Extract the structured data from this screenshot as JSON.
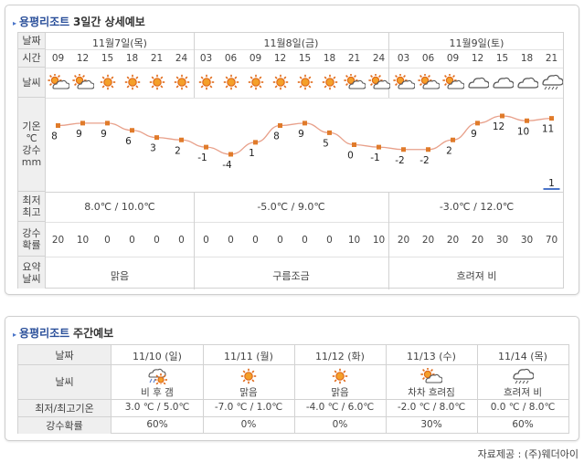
{
  "three_day": {
    "title_arrow": "▸",
    "title": "용평리조트",
    "subtitle": "3일간 상세예보",
    "labels": {
      "date": "날짜",
      "time": "시간",
      "weather": "날씨",
      "temp_line1": "기온",
      "temp_line2": "℃",
      "rain_line1": "강수",
      "rain_line2": "mm",
      "minmax_line1": "최저",
      "minmax_line2": "최고",
      "pop_line1": "강수",
      "pop_line2": "확률",
      "summary_line1": "요약",
      "summary_line2": "날씨"
    },
    "days": [
      {
        "date": "11월7일(목)",
        "minmax": "8.0℃ / 10.0℃",
        "summary": "맑음"
      },
      {
        "date": "11월8일(금)",
        "minmax": "-5.0℃ / 9.0℃",
        "summary": "구름조금"
      },
      {
        "date": "11월9일(토)",
        "minmax": "-3.0℃ / 12.0℃",
        "summary": "흐려져 비"
      }
    ],
    "hours": [
      {
        "time": "09",
        "icon": "sun-cloud-icon",
        "temp": "8",
        "pop": "20"
      },
      {
        "time": "12",
        "icon": "sun-cloud-icon",
        "temp": "9",
        "pop": "10"
      },
      {
        "time": "15",
        "icon": "sun-icon",
        "temp": "9",
        "pop": "0"
      },
      {
        "time": "18",
        "icon": "sun-icon",
        "temp": "6",
        "pop": "0"
      },
      {
        "time": "21",
        "icon": "sun-icon",
        "temp": "3",
        "pop": "0"
      },
      {
        "time": "24",
        "icon": "sun-icon",
        "temp": "2",
        "pop": "0"
      },
      {
        "time": "03",
        "icon": "sun-icon",
        "temp": "-1",
        "pop": "0"
      },
      {
        "time": "06",
        "icon": "sun-icon",
        "temp": "-4",
        "pop": "0"
      },
      {
        "time": "09",
        "icon": "sun-icon",
        "temp": "1",
        "pop": "0"
      },
      {
        "time": "12",
        "icon": "sun-icon",
        "temp": "8",
        "pop": "0"
      },
      {
        "time": "15",
        "icon": "sun-icon",
        "temp": "9",
        "pop": "0"
      },
      {
        "time": "18",
        "icon": "sun-icon",
        "temp": "5",
        "pop": "0"
      },
      {
        "time": "21",
        "icon": "sun-cloud-icon",
        "temp": "0",
        "pop": "10"
      },
      {
        "time": "24",
        "icon": "sun-cloud-icon",
        "temp": "-1",
        "pop": "10"
      },
      {
        "time": "03",
        "icon": "sun-cloud-icon",
        "temp": "-2",
        "pop": "20"
      },
      {
        "time": "06",
        "icon": "sun-cloud-icon",
        "temp": "-2",
        "pop": "20"
      },
      {
        "time": "09",
        "icon": "sun-cloud-icon",
        "temp": "2",
        "pop": "20"
      },
      {
        "time": "12",
        "icon": "cloud-icon",
        "temp": "9",
        "pop": "20"
      },
      {
        "time": "15",
        "icon": "cloud-icon",
        "temp": "12",
        "pop": "30"
      },
      {
        "time": "18",
        "icon": "cloud-icon",
        "temp": "10",
        "pop": "30"
      },
      {
        "time": "21",
        "icon": "cloud-rain-icon",
        "temp": "11",
        "pop": "70"
      }
    ],
    "rain_readout": "1"
  },
  "chart_data": {
    "type": "line",
    "x": [
      "09",
      "12",
      "15",
      "18",
      "21",
      "24",
      "03",
      "06",
      "09",
      "12",
      "15",
      "18",
      "21",
      "24",
      "03",
      "06",
      "09",
      "12",
      "15",
      "18",
      "21"
    ],
    "series": [
      {
        "values": [
          8,
          9,
          9,
          6,
          3,
          2,
          -1,
          -4,
          1,
          8,
          9,
          5,
          0,
          -1,
          -2,
          -2,
          2,
          9,
          12,
          10,
          11
        ]
      }
    ],
    "rain_mm": [
      0,
      0,
      0,
      0,
      0,
      0,
      0,
      0,
      0,
      0,
      0,
      0,
      0,
      0,
      0,
      0,
      0,
      0,
      0,
      0,
      1
    ],
    "line_color": "#e8a08a",
    "marker_color": "#e07b2a",
    "rain_bar_color": "#4a74c9"
  },
  "weekly": {
    "title_arrow": "▸",
    "title": "용평리조트",
    "subtitle": "주간예보",
    "labels": {
      "date": "날짜",
      "weather": "날씨",
      "minmax": "최저/최고기온",
      "pop": "강수확률"
    },
    "days": [
      {
        "date": "11/10 (일)",
        "icon": "sun-rain-icon",
        "desc": "비 후 갬",
        "minmax": "3.0 ℃ / 5.0℃",
        "pop": "60%"
      },
      {
        "date": "11/11 (월)",
        "icon": "sun-icon",
        "desc": "맑음",
        "minmax": "-7.0 ℃ / 1.0℃",
        "pop": "0%"
      },
      {
        "date": "11/12 (화)",
        "icon": "sun-icon",
        "desc": "맑음",
        "minmax": "-4.0 ℃ / 6.0℃",
        "pop": "0%"
      },
      {
        "date": "11/13 (수)",
        "icon": "sun-cloud-icon",
        "desc": "차차 흐려짐",
        "minmax": "-2.0 ℃ / 8.0℃",
        "pop": "30%"
      },
      {
        "date": "11/14 (목)",
        "icon": "cloud-rain-icon",
        "desc": "흐려져 비",
        "minmax": "0.0 ℃ / 8.0℃",
        "pop": "60%"
      }
    ]
  },
  "credit": "자료제공 : (주)웨더아이",
  "colors": {
    "header_bg": "#efefef",
    "border": "#d2d2d2",
    "title": "#2a4f9a",
    "accent": "#4a74c9",
    "sun": "#e06a1a"
  }
}
